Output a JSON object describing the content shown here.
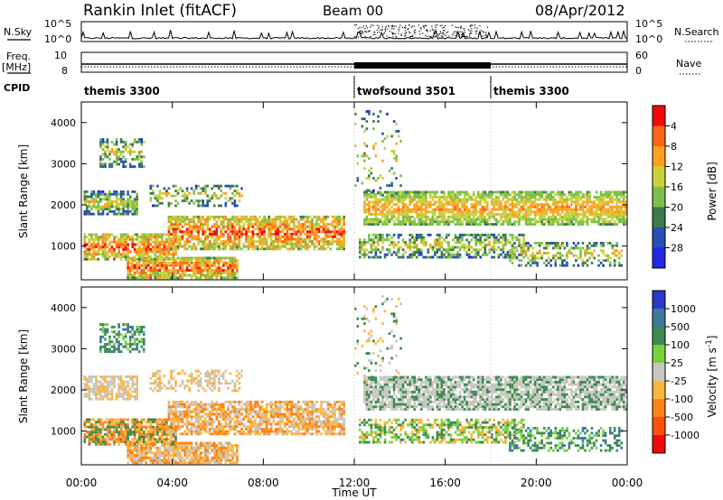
{
  "header": {
    "title": "Rankin Inlet (fitACF)",
    "beam": "Beam 00",
    "date": "08/Apr/2012"
  },
  "chart_data": [
    {
      "type": "line",
      "panel": "noise",
      "left_label": "N.Sky",
      "right_label": "N.Search",
      "left_ticks": [
        "10^5",
        "10^0"
      ],
      "right_ticks": [
        "10^5",
        "10^0"
      ]
    },
    {
      "type": "line",
      "panel": "frequency",
      "left_label": "Freq.",
      "left_unit": "[MHz]",
      "right_label": "Nave",
      "left_ticks": [
        "10",
        "8"
      ],
      "right_ticks": [
        "60",
        "0"
      ]
    },
    {
      "type": "table",
      "panel": "cpid",
      "label": "CPID",
      "segments": [
        {
          "name": "themis 3300",
          "start_hour": 0,
          "end_hour": 12
        },
        {
          "name": "twofsound 3501",
          "start_hour": 12,
          "end_hour": 18
        },
        {
          "name": "themis 3300",
          "start_hour": 18,
          "end_hour": 24
        }
      ]
    },
    {
      "type": "heatmap",
      "panel": "power",
      "ylabel": "Slant Range [km]",
      "yticks": [
        1000,
        2000,
        3000,
        4000
      ],
      "xticks": [
        "00:00",
        "04:00",
        "08:00",
        "12:00",
        "16:00",
        "20:00",
        "00:00"
      ],
      "xlim_hours": [
        0,
        24
      ],
      "ylim_km": [
        180,
        4500
      ],
      "colorbar": {
        "label": "Power [dB]",
        "tick_labels": [
          "4",
          "8",
          "12",
          "16",
          "20",
          "24",
          "28"
        ],
        "colors": [
          "#1e28e6",
          "#2850b4",
          "#3c7a4a",
          "#7bc04a",
          "#c8d23c",
          "#ffa01e",
          "#ff6418",
          "#f00a0a"
        ]
      }
    },
    {
      "type": "heatmap",
      "panel": "velocity",
      "ylabel": "Slant Range [km]",
      "yticks": [
        1000,
        2000,
        3000,
        4000
      ],
      "xticks": [
        "00:00",
        "04:00",
        "08:00",
        "12:00",
        "16:00",
        "20:00",
        "00:00"
      ],
      "xlabel": "Time UT",
      "xlim_hours": [
        0,
        24
      ],
      "ylim_km": [
        180,
        4500
      ],
      "colorbar": {
        "label": "Velocity [m s",
        "label_exponent": "-1",
        "label_close": "]",
        "tick_labels": [
          "1000",
          "500",
          "100",
          "25",
          "-25",
          "-100",
          "-500",
          "-1000"
        ],
        "colors": [
          "#2838c8",
          "#3c7a9a",
          "#3c8a50",
          "#78d23c",
          "#c8c8c0",
          "#ffb43c",
          "#ff8218",
          "#ff5010",
          "#f00a0a"
        ]
      }
    }
  ]
}
